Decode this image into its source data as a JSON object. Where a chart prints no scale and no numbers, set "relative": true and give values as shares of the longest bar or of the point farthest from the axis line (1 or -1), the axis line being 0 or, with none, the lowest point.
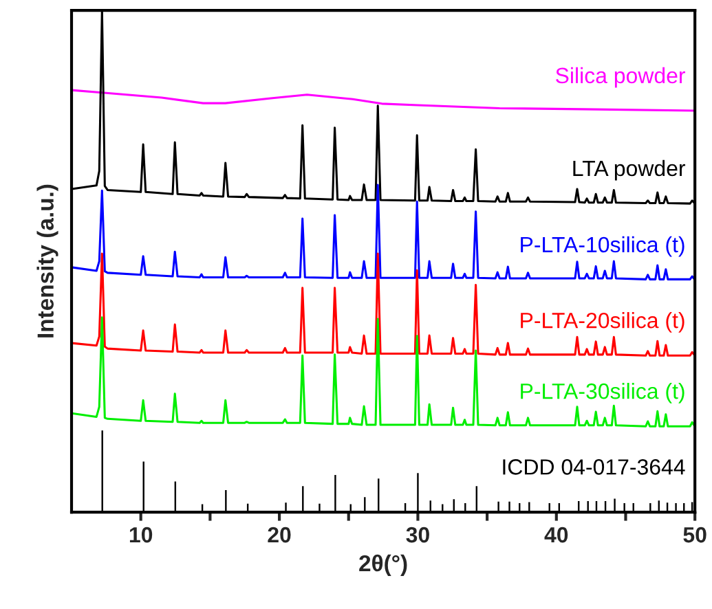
{
  "chart_data": {
    "type": "line",
    "relative": true,
    "xlabel": "2θ(°)",
    "ylabel": "Intensity (a.u.)",
    "xlim": [
      5,
      50
    ],
    "xticks": [
      10,
      {
        "value": 15,
        "label": null
      },
      20,
      {
        "value": 25,
        "label": null
      },
      30,
      {
        "value": 35,
        "label": null
      },
      40,
      {
        "value": 45,
        "label": null
      },
      50
    ],
    "series": [
      {
        "name": "Silica powder",
        "color": "#ff00ff",
        "x": [
          5,
          7.2,
          11.5,
          14.5,
          16.1,
          19.5,
          22,
          25.3,
          27.4,
          30,
          35.9,
          41.9,
          50
        ],
        "values": [
          0.841,
          0.836,
          0.826,
          0.815,
          0.815,
          0.825,
          0.832,
          0.823,
          0.814,
          0.811,
          0.805,
          0.803,
          0.8
        ]
      },
      {
        "name": "LTA powder",
        "color": "#000000",
        "x": [
          5,
          6.8,
          7.0,
          7.2,
          7.4,
          7.6,
          10.0,
          10.17,
          10.35,
          12.3,
          12.46,
          12.65,
          14.25,
          14.38,
          14.5,
          15.95,
          16.11,
          16.3,
          17.5,
          17.64,
          17.8,
          20.25,
          20.41,
          20.55,
          21.5,
          21.67,
          21.85,
          23.85,
          24.0,
          24.2,
          25.0,
          25.1,
          25.25,
          25.95,
          26.11,
          26.3,
          26.95,
          27.11,
          27.3,
          29.8,
          29.94,
          30.1,
          30.7,
          30.83,
          31.0,
          32.4,
          32.54,
          32.7,
          33.25,
          33.38,
          33.5,
          34.0,
          34.18,
          34.35,
          35.6,
          35.75,
          35.9,
          36.35,
          36.5,
          36.65,
          37.8,
          37.95,
          38.1,
          41.35,
          41.5,
          41.65,
          42.05,
          42.2,
          42.35,
          42.7,
          42.85,
          43.0,
          43.35,
          43.5,
          43.65,
          44.0,
          44.15,
          44.3,
          46.45,
          46.6,
          46.75,
          47.15,
          47.3,
          47.45,
          47.75,
          47.9,
          48.05,
          49.65,
          49.8,
          50
        ],
        "values": [
          0.644,
          0.651,
          0.68,
          1.0,
          0.65,
          0.642,
          0.638,
          0.733,
          0.638,
          0.634,
          0.737,
          0.634,
          0.631,
          0.636,
          0.631,
          0.629,
          0.696,
          0.629,
          0.628,
          0.634,
          0.628,
          0.626,
          0.632,
          0.626,
          0.625,
          0.771,
          0.625,
          0.623,
          0.766,
          0.623,
          0.622,
          0.63,
          0.622,
          0.622,
          0.653,
          0.622,
          0.622,
          0.81,
          0.622,
          0.621,
          0.751,
          0.621,
          0.621,
          0.648,
          0.621,
          0.62,
          0.642,
          0.62,
          0.62,
          0.627,
          0.62,
          0.62,
          0.723,
          0.62,
          0.619,
          0.629,
          0.619,
          0.619,
          0.636,
          0.619,
          0.619,
          0.627,
          0.619,
          0.618,
          0.644,
          0.618,
          0.617,
          0.625,
          0.617,
          0.617,
          0.634,
          0.617,
          0.617,
          0.627,
          0.617,
          0.617,
          0.642,
          0.617,
          0.616,
          0.621,
          0.616,
          0.616,
          0.637,
          0.616,
          0.616,
          0.629,
          0.616,
          0.615,
          0.621,
          0.615
        ]
      },
      {
        "name": "P-LTA-10silica (t)",
        "color": "#0000ff",
        "x": [
          5,
          6.8,
          7.0,
          7.2,
          7.4,
          7.6,
          10.0,
          10.17,
          10.35,
          12.3,
          12.46,
          12.65,
          14.25,
          14.38,
          14.5,
          15.95,
          16.11,
          16.3,
          17.5,
          17.64,
          17.8,
          20.25,
          20.41,
          20.55,
          21.5,
          21.67,
          21.85,
          23.85,
          24.0,
          24.2,
          25.0,
          25.1,
          25.25,
          25.95,
          26.11,
          26.3,
          26.95,
          27.11,
          27.3,
          29.8,
          29.94,
          30.1,
          30.7,
          30.83,
          31.0,
          32.4,
          32.54,
          32.7,
          33.25,
          33.38,
          33.5,
          34.0,
          34.18,
          34.35,
          35.6,
          35.75,
          35.9,
          36.35,
          36.5,
          36.65,
          37.8,
          37.95,
          38.1,
          41.35,
          41.5,
          41.65,
          42.05,
          42.2,
          42.35,
          42.7,
          42.85,
          43.0,
          43.35,
          43.5,
          43.65,
          44.0,
          44.15,
          44.3,
          46.45,
          46.6,
          46.75,
          47.15,
          47.3,
          47.45,
          47.75,
          47.9,
          48.05,
          49.65,
          49.8,
          50
        ],
        "values": [
          0.488,
          0.481,
          0.5,
          0.641,
          0.48,
          0.477,
          0.473,
          0.51,
          0.473,
          0.47,
          0.519,
          0.47,
          0.468,
          0.474,
          0.468,
          0.468,
          0.508,
          0.468,
          0.468,
          0.471,
          0.468,
          0.468,
          0.477,
          0.468,
          0.468,
          0.585,
          0.468,
          0.467,
          0.592,
          0.467,
          0.467,
          0.478,
          0.467,
          0.467,
          0.5,
          0.467,
          0.467,
          0.652,
          0.467,
          0.467,
          0.619,
          0.467,
          0.467,
          0.5,
          0.467,
          0.467,
          0.495,
          0.467,
          0.467,
          0.475,
          0.467,
          0.467,
          0.599,
          0.467,
          0.466,
          0.478,
          0.466,
          0.466,
          0.489,
          0.466,
          0.466,
          0.477,
          0.466,
          0.466,
          0.499,
          0.466,
          0.466,
          0.475,
          0.466,
          0.466,
          0.49,
          0.466,
          0.466,
          0.481,
          0.466,
          0.466,
          0.5,
          0.466,
          0.464,
          0.473,
          0.464,
          0.464,
          0.492,
          0.464,
          0.464,
          0.484,
          0.464,
          0.464,
          0.47,
          0.463
        ]
      },
      {
        "name": "P-LTA-20silica (t)",
        "color": "#ff0000",
        "x": [
          5,
          6.8,
          7.0,
          7.2,
          7.4,
          7.6,
          10.0,
          10.17,
          10.35,
          12.3,
          12.46,
          12.65,
          14.25,
          14.38,
          14.5,
          15.95,
          16.11,
          16.3,
          17.5,
          17.64,
          17.8,
          20.25,
          20.41,
          20.55,
          21.5,
          21.67,
          21.85,
          23.85,
          24.0,
          24.2,
          25.0,
          25.1,
          25.25,
          25.95,
          26.11,
          26.3,
          26.95,
          27.11,
          27.3,
          29.8,
          29.94,
          30.1,
          30.7,
          30.83,
          31.0,
          32.4,
          32.54,
          32.7,
          33.25,
          33.38,
          33.5,
          34.0,
          34.18,
          34.35,
          35.6,
          35.75,
          35.9,
          36.35,
          36.5,
          36.65,
          37.8,
          37.95,
          38.1,
          41.35,
          41.5,
          41.65,
          42.05,
          42.2,
          42.35,
          42.7,
          42.85,
          43.0,
          43.35,
          43.5,
          43.65,
          44.0,
          44.15,
          44.3,
          46.45,
          46.6,
          46.75,
          47.15,
          47.3,
          47.45,
          47.75,
          47.9,
          48.05,
          49.65,
          49.8,
          50
        ],
        "values": [
          0.337,
          0.332,
          0.35,
          0.515,
          0.33,
          0.326,
          0.322,
          0.362,
          0.322,
          0.32,
          0.374,
          0.32,
          0.318,
          0.323,
          0.318,
          0.318,
          0.362,
          0.318,
          0.318,
          0.323,
          0.318,
          0.318,
          0.327,
          0.318,
          0.318,
          0.447,
          0.318,
          0.318,
          0.447,
          0.318,
          0.318,
          0.329,
          0.318,
          0.316,
          0.352,
          0.316,
          0.316,
          0.515,
          0.316,
          0.316,
          0.482,
          0.316,
          0.316,
          0.352,
          0.316,
          0.316,
          0.347,
          0.316,
          0.316,
          0.325,
          0.316,
          0.316,
          0.453,
          0.316,
          0.314,
          0.327,
          0.314,
          0.314,
          0.337,
          0.314,
          0.314,
          0.326,
          0.314,
          0.314,
          0.349,
          0.314,
          0.314,
          0.325,
          0.314,
          0.314,
          0.34,
          0.314,
          0.314,
          0.329,
          0.314,
          0.314,
          0.349,
          0.314,
          0.312,
          0.321,
          0.312,
          0.312,
          0.341,
          0.312,
          0.312,
          0.333,
          0.312,
          0.312,
          0.319,
          0.312
        ]
      },
      {
        "name": "P-LTA-30silica (t)",
        "color": "#00ee00",
        "x": [
          5,
          6.8,
          7.0,
          7.2,
          7.4,
          7.6,
          10.0,
          10.17,
          10.35,
          12.3,
          12.46,
          12.65,
          14.25,
          14.38,
          14.5,
          15.95,
          16.11,
          16.3,
          17.5,
          17.64,
          17.8,
          20.25,
          20.41,
          20.55,
          21.5,
          21.67,
          21.85,
          23.85,
          24.0,
          24.2,
          25.0,
          25.1,
          25.25,
          25.95,
          26.11,
          26.3,
          26.95,
          27.11,
          27.3,
          29.8,
          29.94,
          30.1,
          30.7,
          30.83,
          31.0,
          32.4,
          32.54,
          32.7,
          33.25,
          33.38,
          33.5,
          34.0,
          34.18,
          34.35,
          35.6,
          35.75,
          35.9,
          36.35,
          36.5,
          36.65,
          37.8,
          37.95,
          38.1,
          41.35,
          41.5,
          41.65,
          42.05,
          42.2,
          42.35,
          42.7,
          42.85,
          43.0,
          43.35,
          43.5,
          43.65,
          44.0,
          44.15,
          44.3,
          46.45,
          46.6,
          46.75,
          47.15,
          47.3,
          47.45,
          47.75,
          47.9,
          48.05,
          49.65,
          49.8,
          50
        ],
        "values": [
          0.197,
          0.19,
          0.21,
          0.388,
          0.188,
          0.186,
          0.182,
          0.223,
          0.182,
          0.18,
          0.236,
          0.18,
          0.178,
          0.182,
          0.178,
          0.178,
          0.223,
          0.178,
          0.178,
          0.18,
          0.178,
          0.178,
          0.185,
          0.178,
          0.178,
          0.312,
          0.178,
          0.176,
          0.314,
          0.176,
          0.176,
          0.188,
          0.176,
          0.174,
          0.211,
          0.174,
          0.174,
          0.385,
          0.174,
          0.174,
          0.351,
          0.174,
          0.174,
          0.215,
          0.174,
          0.174,
          0.208,
          0.174,
          0.174,
          0.184,
          0.174,
          0.174,
          0.322,
          0.174,
          0.173,
          0.188,
          0.173,
          0.173,
          0.199,
          0.173,
          0.173,
          0.188,
          0.173,
          0.173,
          0.21,
          0.173,
          0.173,
          0.182,
          0.173,
          0.173,
          0.2,
          0.173,
          0.173,
          0.188,
          0.173,
          0.173,
          0.212,
          0.173,
          0.171,
          0.181,
          0.171,
          0.171,
          0.201,
          0.171,
          0.171,
          0.195,
          0.171,
          0.171,
          0.179,
          0.171
        ]
      },
      {
        "name": "ICDD 04-017-3644",
        "type": "bar",
        "color": "#000000",
        "x": [
          7.22,
          10.2,
          12.49,
          14.44,
          16.14,
          17.72,
          20.47,
          21.7,
          22.9,
          24.04,
          25.15,
          26.17,
          27.16,
          29.09,
          30.0,
          30.91,
          31.78,
          32.6,
          33.42,
          34.24,
          35.82,
          36.61,
          37.34,
          38.04,
          39.5,
          40.2,
          41.61,
          42.28,
          42.89,
          43.54,
          44.21,
          44.91,
          45.56,
          46.78,
          47.4,
          48.01,
          48.63,
          49.21,
          49.8
        ],
        "values": [
          0.163,
          0.101,
          0.061,
          0.016,
          0.044,
          0.017,
          0.019,
          0.052,
          0.017,
          0.074,
          0.016,
          0.03,
          0.067,
          0.018,
          0.078,
          0.023,
          0.016,
          0.026,
          0.018,
          0.052,
          0.021,
          0.021,
          0.018,
          0.02,
          0.018,
          0.018,
          0.022,
          0.022,
          0.022,
          0.022,
          0.027,
          0.018,
          0.018,
          0.018,
          0.023,
          0.019,
          0.018,
          0.018,
          0.02
        ]
      }
    ]
  }
}
